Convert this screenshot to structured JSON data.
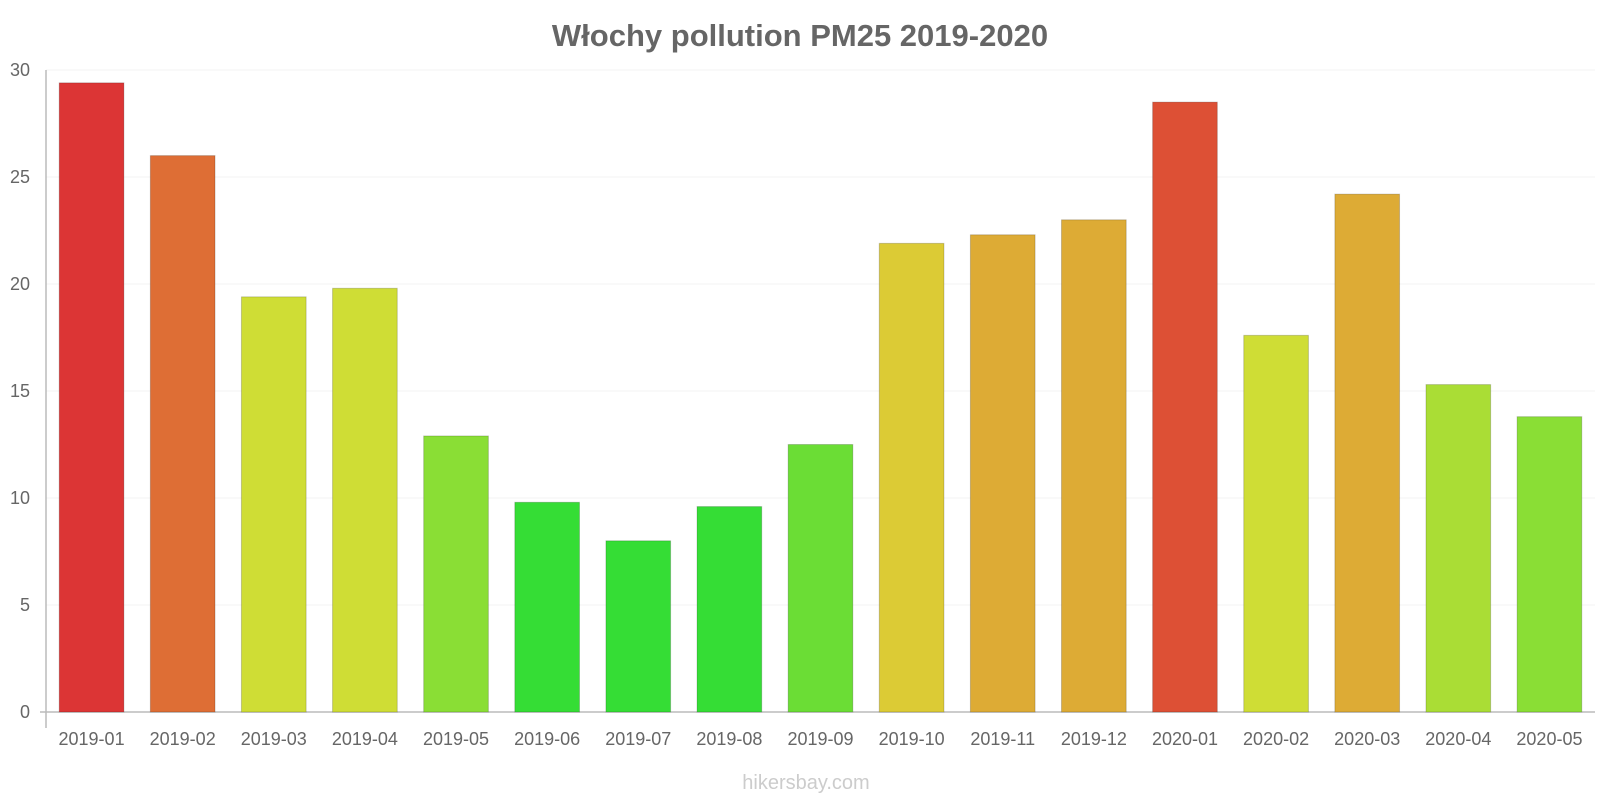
{
  "chart_data": {
    "type": "bar",
    "title": "Włochy pollution PM25 2019-2020",
    "xlabel": "",
    "ylabel": "",
    "ylim": [
      0,
      30
    ],
    "yticks": [
      0,
      5,
      10,
      15,
      20,
      25,
      30
    ],
    "grid": true,
    "legend": "none",
    "categories": [
      "2019-01",
      "2019-02",
      "2019-03",
      "2019-04",
      "2019-05",
      "2019-06",
      "2019-07",
      "2019-08",
      "2019-09",
      "2019-10",
      "2019-11",
      "2019-12",
      "2020-01",
      "2020-02",
      "2020-03",
      "2020-04",
      "2020-05"
    ],
    "values": [
      29.4,
      26,
      19.4,
      19.8,
      12.9,
      9.8,
      8,
      9.6,
      12.5,
      21.9,
      22.3,
      23,
      28.5,
      17.6,
      24.2,
      15.3,
      13.8
    ],
    "colors": [
      "#dc3535",
      "#de6e35",
      "#cfdd35",
      "#cfdd35",
      "#8ade35",
      "#35dd35",
      "#35dd35",
      "#35dd35",
      "#6bdd35",
      "#dccb35",
      "#ddab35",
      "#ddab35",
      "#dd5035",
      "#cfdd35",
      "#ddab35",
      "#aadd35",
      "#8ade35"
    ]
  },
  "watermark": "hikersbay.com"
}
